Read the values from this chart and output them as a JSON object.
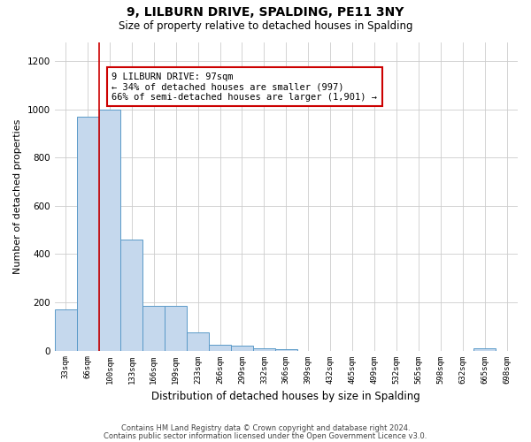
{
  "title": "9, LILBURN DRIVE, SPALDING, PE11 3NY",
  "subtitle": "Size of property relative to detached houses in Spalding",
  "xlabel": "Distribution of detached houses by size in Spalding",
  "ylabel": "Number of detached properties",
  "footnote1": "Contains HM Land Registry data © Crown copyright and database right 2024.",
  "footnote2": "Contains public sector information licensed under the Open Government Licence v3.0.",
  "bin_labels": [
    "33sqm",
    "66sqm",
    "100sqm",
    "133sqm",
    "166sqm",
    "199sqm",
    "233sqm",
    "266sqm",
    "299sqm",
    "332sqm",
    "366sqm",
    "399sqm",
    "432sqm",
    "465sqm",
    "499sqm",
    "532sqm",
    "565sqm",
    "598sqm",
    "632sqm",
    "665sqm",
    "698sqm"
  ],
  "bar_heights": [
    170,
    970,
    1000,
    460,
    185,
    185,
    75,
    25,
    20,
    10,
    5,
    0,
    0,
    0,
    0,
    0,
    0,
    0,
    0,
    10,
    0
  ],
  "bar_color": "#c5d8ed",
  "bar_edge_color": "#5a9ac8",
  "property_line_color": "#cc0000",
  "annotation_text": "9 LILBURN DRIVE: 97sqm\n← 34% of detached houses are smaller (997)\n66% of semi-detached houses are larger (1,901) →",
  "annotation_box_color": "#ffffff",
  "annotation_box_edge": "#cc0000",
  "ylim": [
    0,
    1280
  ],
  "yticks": [
    0,
    200,
    400,
    600,
    800,
    1000,
    1200
  ],
  "background_color": "#ffffff",
  "grid_color": "#cccccc"
}
